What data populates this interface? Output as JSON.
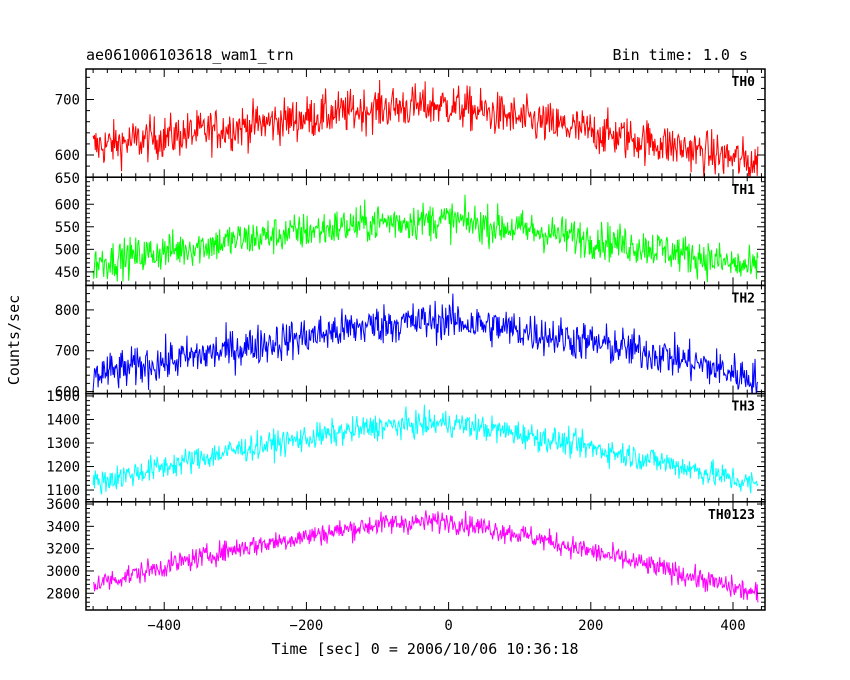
{
  "chart_data": {
    "type": "line",
    "title": "ae061006103618_wam1_trn",
    "bin_time": "Bin time: 1.0 s",
    "xlabel": "Time [sec] 0 = 2006/10/06 10:36:18",
    "ylabel": "Counts/sec",
    "xlim": [
      -510,
      445
    ],
    "x_start": -500,
    "x_end": 435,
    "x_step": 1,
    "x_ticks": [
      -400,
      -200,
      0,
      200,
      400
    ],
    "x_tick_labels": [
      "−400",
      "−200",
      "0",
      "200",
      "400"
    ],
    "panels": [
      {
        "name": "TH0",
        "color": "#ff0000",
        "ylim": [
          560,
          755
        ],
        "y_ticks": [
          600,
          700
        ],
        "y_tick_labels": [
          "600",
          "700"
        ],
        "extra_label": "650",
        "trend_x": [
          -500,
          -300,
          -100,
          0,
          100,
          300,
          435
        ],
        "trend_y": [
          615,
          650,
          685,
          690,
          665,
          620,
          585
        ],
        "noise": 28
      },
      {
        "name": "TH1",
        "color": "#00ff00",
        "ylim": [
          420,
          660
        ],
        "y_ticks": [
          450,
          500,
          550,
          600
        ],
        "y_tick_labels": [
          "450",
          "500",
          "550",
          "600"
        ],
        "trend_x": [
          -500,
          -300,
          -100,
          0,
          100,
          300,
          435
        ],
        "trend_y": [
          470,
          520,
          560,
          565,
          545,
          500,
          455
        ],
        "noise": 30
      },
      {
        "name": "TH2",
        "color": "#0000ff",
        "ylim": [
          595,
          860
        ],
        "y_ticks": [
          600,
          700,
          800
        ],
        "y_tick_labels": [
          "600",
          "700",
          "800"
        ],
        "trend_x": [
          -500,
          -300,
          -100,
          0,
          100,
          300,
          435
        ],
        "trend_y": [
          640,
          705,
          765,
          775,
          750,
          690,
          630
        ],
        "noise": 35
      },
      {
        "name": "TH3",
        "color": "#00ffff",
        "ylim": [
          1050,
          1510
        ],
        "y_ticks": [
          1100,
          1200,
          1300,
          1400,
          1500
        ],
        "y_tick_labels": [
          "1100",
          "1200",
          "1300",
          "1400",
          "1500"
        ],
        "trend_x": [
          -500,
          -300,
          -100,
          0,
          100,
          300,
          435
        ],
        "trend_y": [
          1130,
          1270,
          1370,
          1385,
          1340,
          1220,
          1120
        ],
        "noise": 40
      },
      {
        "name": "TH0123",
        "color": "#ff00ff",
        "ylim": [
          2650,
          3620
        ],
        "y_ticks": [
          2800,
          3000,
          3200,
          3400,
          3600
        ],
        "y_tick_labels": [
          "2800",
          "3000",
          "3200",
          "3400",
          "3600"
        ],
        "trend_x": [
          -500,
          -300,
          -100,
          0,
          100,
          300,
          435
        ],
        "trend_y": [
          2880,
          3200,
          3420,
          3450,
          3330,
          3020,
          2790
        ],
        "noise": 70
      }
    ]
  }
}
